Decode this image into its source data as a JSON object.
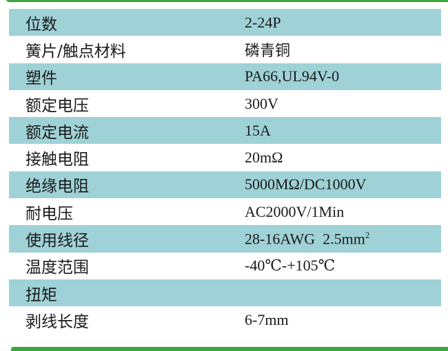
{
  "colors": {
    "row_shade": "#9fd2d6",
    "frame_green": "#3fa43c"
  },
  "rows": [
    {
      "label": "位数",
      "value": "2-24P"
    },
    {
      "label": "簧片/触点材料",
      "value": "磷青铜"
    },
    {
      "label": "塑件",
      "value": "PA66,UL94V-0"
    },
    {
      "label": "额定电压",
      "value": "300V"
    },
    {
      "label": "额定电流",
      "value": "15A"
    },
    {
      "label": "接触电阻",
      "value": "20mΩ"
    },
    {
      "label": "绝缘电阻",
      "value": "5000MΩ/DC1000V"
    },
    {
      "label": "耐电压",
      "value": "AC2000V/1Min"
    },
    {
      "label": "使用线径",
      "value": "28-16AWG  2.5mm",
      "sup": "2"
    },
    {
      "label": "温度范围",
      "value": "-40℃-+105℃"
    },
    {
      "label": "扭矩",
      "value": ""
    },
    {
      "label": "剥线长度",
      "value": "6-7mm"
    }
  ]
}
